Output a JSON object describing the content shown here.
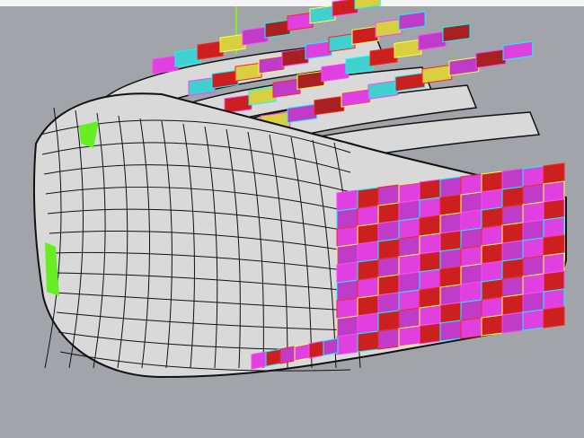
{
  "viewport": {
    "background": "#a1a5aa",
    "surface_color": "#d9d9d9",
    "edge_color": "#111111",
    "axis_color": "#7fff00",
    "panel_colors": [
      "#e040e0",
      "#40d0d0",
      "#cc2020",
      "#d8d040",
      "#c03cc8",
      "#a82020"
    ],
    "panel_outline_colors": [
      "#ff40ff",
      "#00ffff",
      "#ff2020",
      "#ffff40"
    ]
  }
}
